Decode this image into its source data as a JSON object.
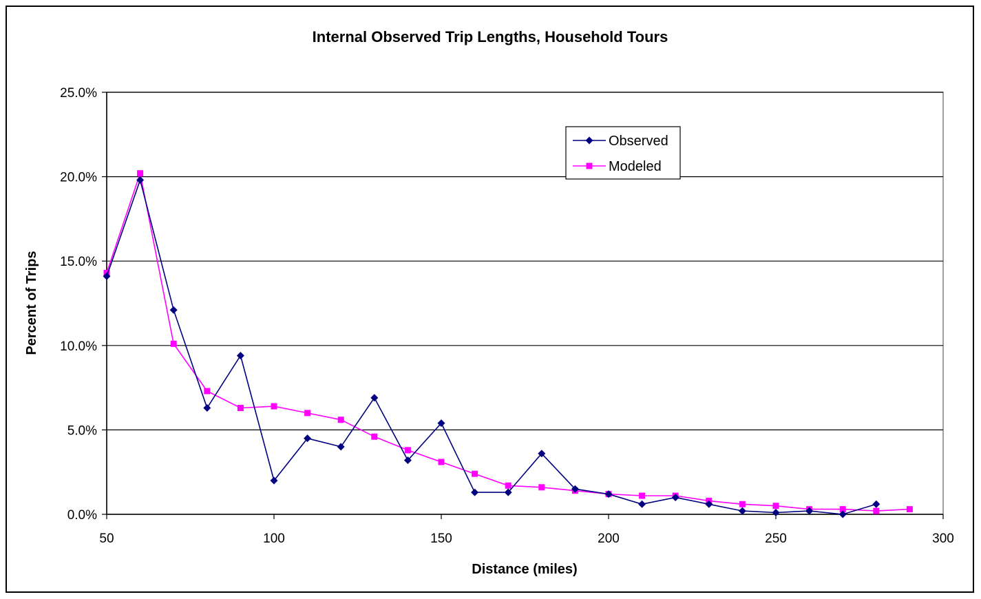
{
  "chart_data": {
    "type": "line",
    "title": "Internal Observed Trip Lengths, Household Tours",
    "xlabel": "Distance (miles)",
    "ylabel": "Percent of Trips",
    "xlim": [
      50,
      300
    ],
    "ylim": [
      0,
      25
    ],
    "x_ticks": [
      50,
      100,
      150,
      200,
      250,
      300
    ],
    "x_tick_labels": [
      "50",
      "100",
      "150",
      "200",
      "250",
      "300"
    ],
    "y_ticks": [
      0,
      5,
      10,
      15,
      20,
      25
    ],
    "y_tick_labels": [
      "0.0%",
      "5.0%",
      "10.0%",
      "15.0%",
      "20.0%",
      "25.0%"
    ],
    "grid": "horizontal",
    "legend_position": "top-right",
    "series": [
      {
        "name": "Observed",
        "color": "#000080",
        "marker": "diamond",
        "x": [
          50,
          60,
          70,
          80,
          90,
          100,
          110,
          120,
          130,
          140,
          150,
          160,
          170,
          180,
          190,
          200,
          210,
          220,
          230,
          240,
          250,
          260,
          270,
          280
        ],
        "values": [
          14.1,
          19.8,
          12.1,
          6.3,
          9.4,
          2.0,
          4.5,
          4.0,
          6.9,
          3.2,
          5.4,
          1.3,
          1.3,
          3.6,
          1.5,
          1.2,
          0.6,
          1.0,
          0.6,
          0.2,
          0.1,
          0.2,
          0.0,
          0.6
        ]
      },
      {
        "name": "Modeled",
        "color": "#FF00FF",
        "marker": "square",
        "x": [
          50,
          60,
          70,
          80,
          90,
          100,
          110,
          120,
          130,
          140,
          150,
          160,
          170,
          180,
          190,
          200,
          210,
          220,
          230,
          240,
          250,
          260,
          270,
          280,
          290
        ],
        "values": [
          14.3,
          20.2,
          10.1,
          7.3,
          6.3,
          6.4,
          6.0,
          5.6,
          4.6,
          3.8,
          3.1,
          2.4,
          1.7,
          1.6,
          1.4,
          1.2,
          1.1,
          1.1,
          0.8,
          0.6,
          0.5,
          0.3,
          0.3,
          0.2,
          0.3
        ]
      }
    ]
  }
}
